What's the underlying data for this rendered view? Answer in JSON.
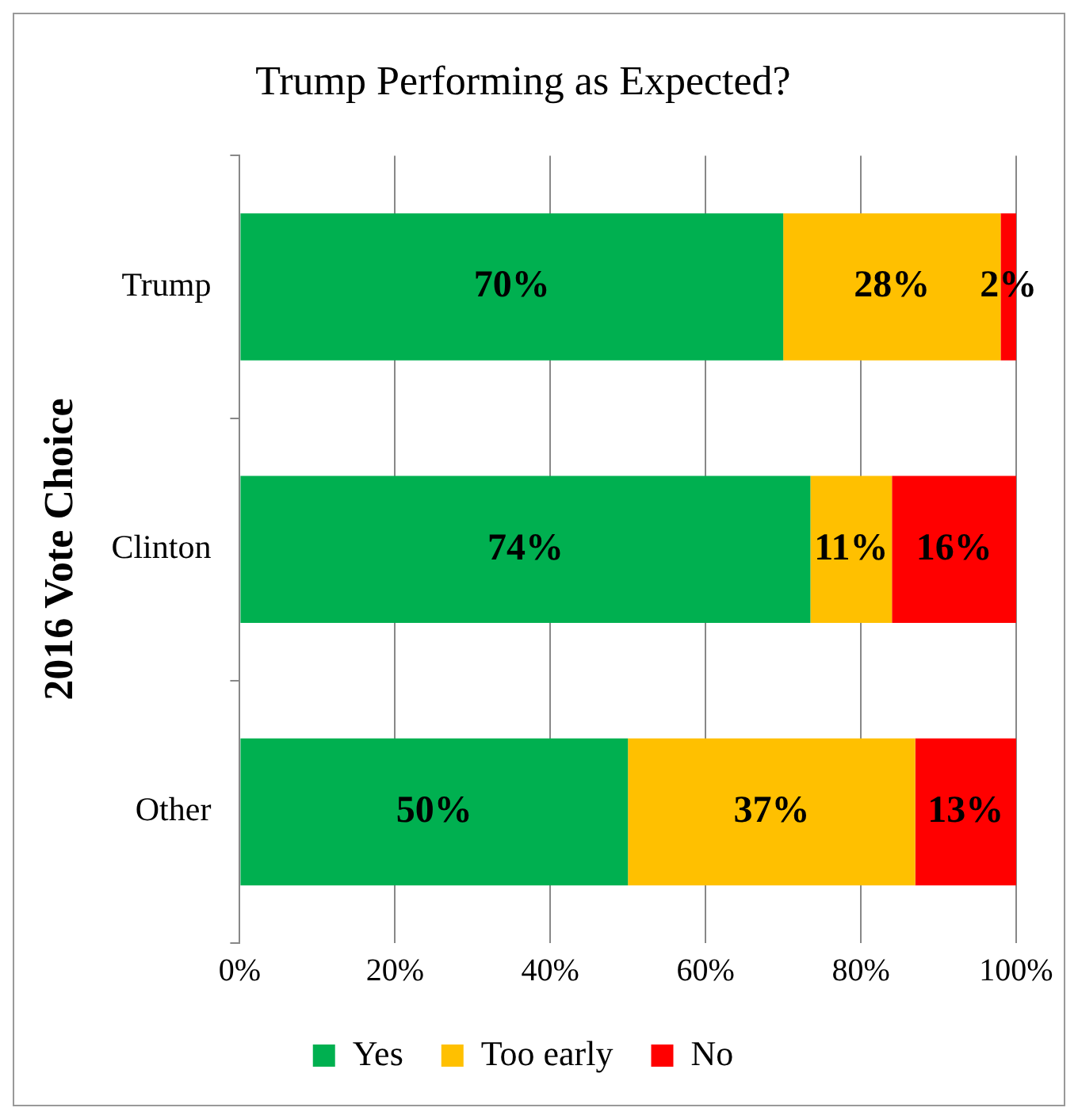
{
  "chart_data": {
    "type": "bar",
    "orientation": "horizontal",
    "stacked": true,
    "title": "Trump Performing as Expected?",
    "ylabel": "2016 Vote Choice",
    "categories": [
      "Trump",
      "Clinton",
      "Other"
    ],
    "series": [
      {
        "name": "Yes",
        "color": "#00b050",
        "values": [
          70,
          73.5,
          50
        ],
        "value_labels": [
          "70%",
          "74%",
          "50%"
        ]
      },
      {
        "name": "Too early",
        "color": "#ffc000",
        "values": [
          28,
          10.5,
          37
        ],
        "value_labels": [
          "28%",
          "11%",
          "37%"
        ]
      },
      {
        "name": "No",
        "color": "#ff0000",
        "values": [
          2,
          16,
          13
        ],
        "value_labels": [
          "2%",
          "16%",
          "13%"
        ]
      }
    ],
    "xlim": [
      0,
      100
    ],
    "xticks": [
      {
        "value": 0,
        "label": "0%"
      },
      {
        "value": 20,
        "label": "20%"
      },
      {
        "value": 40,
        "label": "40%"
      },
      {
        "value": 60,
        "label": "60%"
      },
      {
        "value": 80,
        "label": "80%"
      },
      {
        "value": 100,
        "label": "100%"
      }
    ],
    "grid": "x",
    "legend": "bottom"
  }
}
